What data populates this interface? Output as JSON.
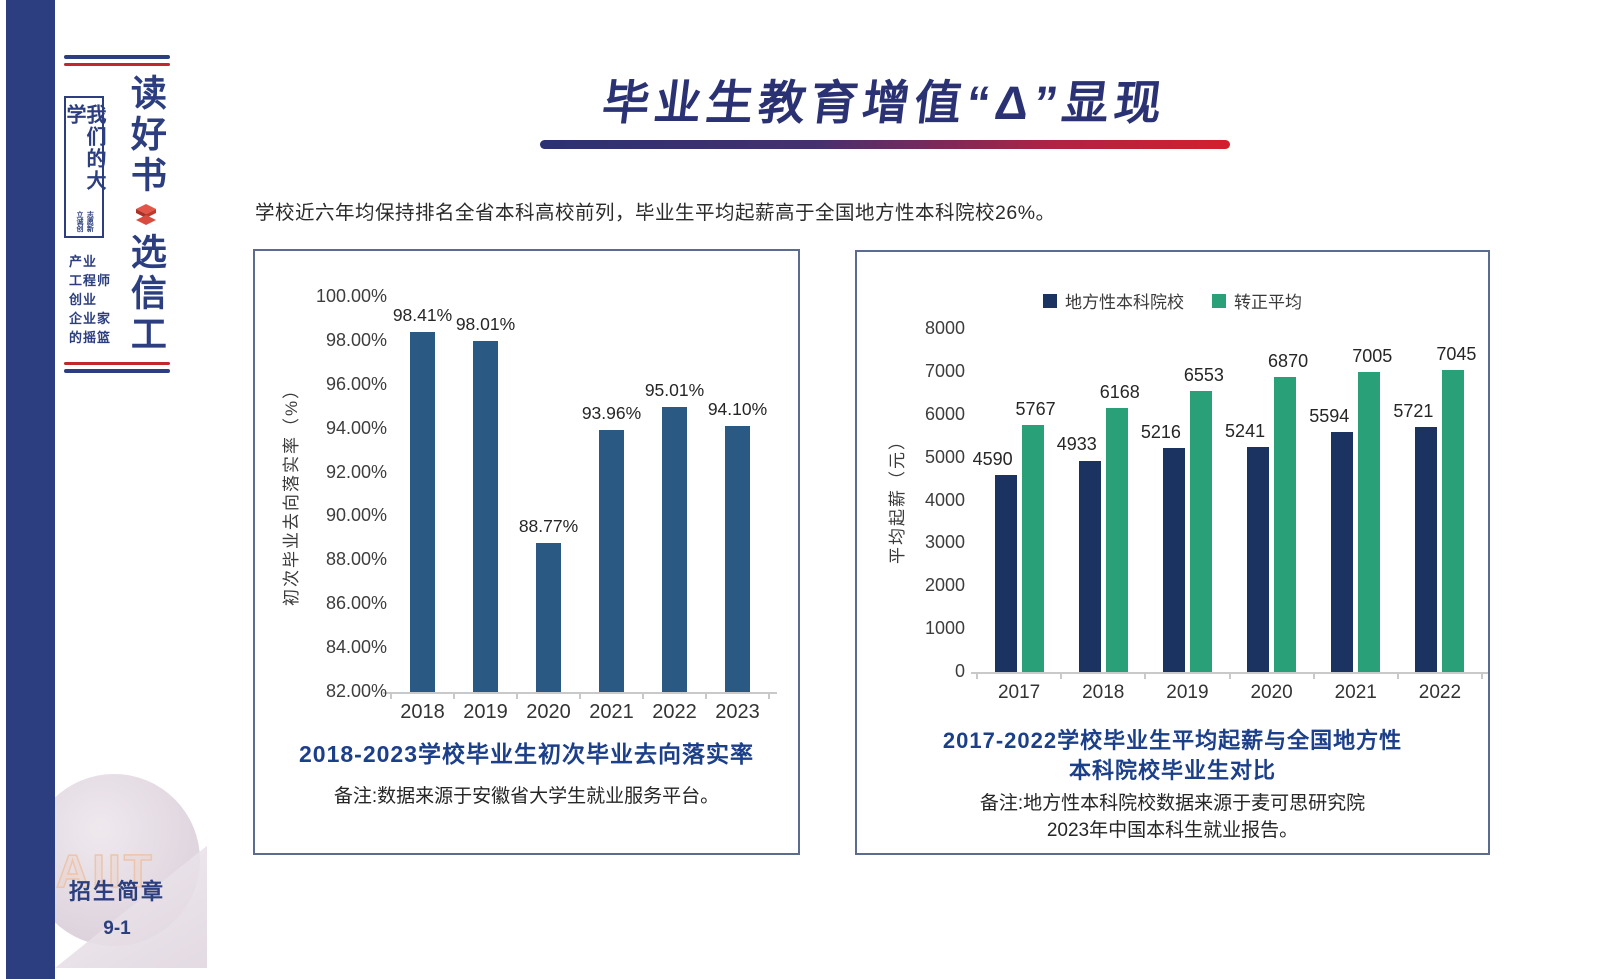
{
  "header": {
    "title": "毕业生教育增值“Δ”显现"
  },
  "intro": "学校近六年均保持排名全省本科高校前列，毕业生平均起薪高于全国地方性本科院校26%。",
  "sidebar": {
    "slogan_top": "读好书",
    "slogan_bottom": "选信工",
    "box_title": "我们的大学",
    "box_motto_col1": "志愿新",
    "box_motto_col2": "立诚创",
    "tagline_lines": [
      "产业",
      "工程师",
      "创业",
      "企业家",
      "的摇篮"
    ]
  },
  "corner": {
    "watermark": "AIIT",
    "footer_label": "招生简章",
    "page_number": "9-1"
  },
  "colors": {
    "rail_navy": "#2c3e7f",
    "title_navy": "#2b3273",
    "underline_red": "#d31f2e",
    "caption_blue": "#1c3f8a",
    "panel_border": "#5c6c90",
    "bar_blue": "#2a5a84",
    "series_navy": "#1a3361",
    "series_green": "#2aa079"
  },
  "chart_data": [
    {
      "type": "bar",
      "title": "2018-2023学校毕业生初次毕业去向落实率",
      "note": "备注:数据来源于安徽省大学生就业服务平台。",
      "categories": [
        "2018",
        "2019",
        "2020",
        "2021",
        "2022",
        "2023"
      ],
      "values": [
        98.41,
        98.01,
        88.77,
        93.96,
        95.01,
        94.1
      ],
      "value_labels": [
        "98.41%",
        "98.01%",
        "88.77%",
        "93.96%",
        "95.01%",
        "94.10%"
      ],
      "xlabel": "",
      "ylabel": "初次毕业去向落实率（%）",
      "ylim": [
        82,
        100
      ],
      "ytick_step": 2,
      "ytick_labels": [
        "100.00%",
        "98.00%",
        "96.00%",
        "94.00%",
        "92.00%",
        "90.00%",
        "88.00%",
        "86.00%",
        "84.00%",
        "82.00%"
      ],
      "grid": false,
      "bar_color": "#2a5a84"
    },
    {
      "type": "bar",
      "title_lines": [
        "2017-2022学校毕业生平均起薪与全国地方性",
        "本科院校毕业生对比"
      ],
      "note_lines": [
        "备注:地方性本科院校数据来源于麦可思研究院",
        "2023年中国本科生就业报告。"
      ],
      "categories": [
        "2017",
        "2018",
        "2019",
        "2020",
        "2021",
        "2022"
      ],
      "series": [
        {
          "name": "地方性本科院校",
          "color": "#1a3361",
          "values": [
            4590,
            4933,
            5216,
            5241,
            5594,
            5721
          ]
        },
        {
          "name": "转正平均",
          "color": "#2aa079",
          "values": [
            5767,
            6168,
            6553,
            6870,
            7005,
            7045
          ]
        }
      ],
      "xlabel": "",
      "ylabel": "平均起薪（元）",
      "ylim": [
        0,
        8000
      ],
      "ytick_step": 1000,
      "ytick_labels": [
        "8000",
        "7000",
        "6000",
        "5000",
        "4000",
        "3000",
        "2000",
        "1000",
        "0"
      ],
      "grid": false,
      "legend_position": "top-center"
    }
  ]
}
